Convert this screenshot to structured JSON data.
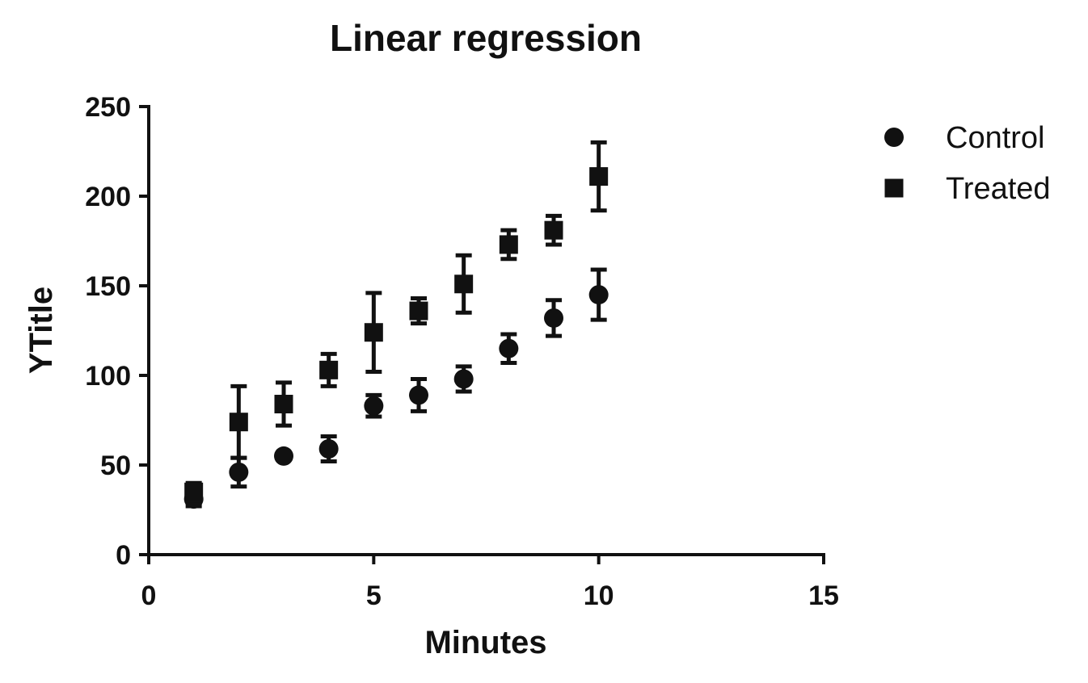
{
  "chart_data": {
    "type": "scatter",
    "title": "Linear regression",
    "xlabel": "Minutes",
    "ylabel": "YTitle",
    "xlim": [
      0,
      15
    ],
    "ylim": [
      0,
      250
    ],
    "xticks": [
      "0",
      "5",
      "10",
      "15"
    ],
    "yticks": [
      "0",
      "50",
      "100",
      "150",
      "200",
      "250"
    ],
    "grid": false,
    "legend_position": "top-right",
    "series": [
      {
        "name": "Control",
        "marker": "circle",
        "color": "#111111",
        "x": [
          1,
          2,
          3,
          4,
          5,
          6,
          7,
          8,
          9,
          10
        ],
        "y": [
          31,
          46,
          55,
          59,
          83,
          89,
          98,
          115,
          132,
          145
        ],
        "err": [
          4,
          8,
          0,
          7,
          6,
          9,
          7,
          8,
          10,
          14
        ]
      },
      {
        "name": "Treated",
        "marker": "square",
        "color": "#111111",
        "x": [
          1,
          2,
          3,
          4,
          5,
          6,
          7,
          8,
          9,
          10
        ],
        "y": [
          35,
          74,
          84,
          103,
          124,
          136,
          151,
          173,
          181,
          211
        ],
        "err": [
          5,
          20,
          12,
          9,
          22,
          7,
          16,
          8,
          8,
          19
        ]
      }
    ]
  }
}
